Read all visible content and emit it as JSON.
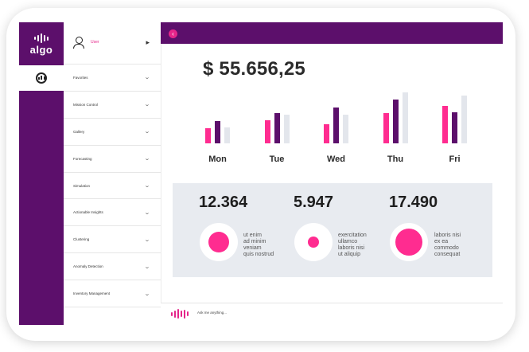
{
  "app": {
    "logo_text": "algo"
  },
  "menu": {
    "user_label": "User",
    "items": [
      "Favorites",
      "Mission Control",
      "Gallery",
      "Forecasting",
      "Simulation",
      "Actionable Insights",
      "Clustering",
      "Anomaly Detection",
      "Inventory Management"
    ]
  },
  "dashboard": {
    "amount": "$ 55.656,25",
    "chart_data": {
      "type": "bar",
      "categories": [
        "Mon",
        "Tue",
        "Wed",
        "Thu",
        "Fri"
      ],
      "series": [
        {
          "values": [
            19,
            29,
            24,
            38,
            47
          ],
          "color": "#ff2c90"
        },
        {
          "values": [
            28,
            38,
            45,
            55,
            39
          ],
          "color": "#5c0f6b"
        },
        {
          "values": [
            20,
            36,
            36,
            64,
            60
          ],
          "color": "#e3e6ec"
        }
      ],
      "ylim": [
        0,
        70
      ]
    }
  },
  "stats": [
    {
      "value": "12.364",
      "text": "ut enim\nad minim\nveniam\nquis nostrud",
      "fill": 0.65
    },
    {
      "value": "5.947",
      "text": "exercitation\nullamco\nlaboris nisi\nut aliquip",
      "fill": 0.35
    },
    {
      "value": "17.490",
      "text": "laboris nisi\nex ea\ncommodo\nconsequat",
      "fill": 0.85
    }
  ],
  "ask": {
    "placeholder": "Ask me anything..."
  },
  "colors": {
    "brand": "#5c0f6b",
    "accent": "#ff2c90",
    "muted": "#e3e6ec"
  }
}
